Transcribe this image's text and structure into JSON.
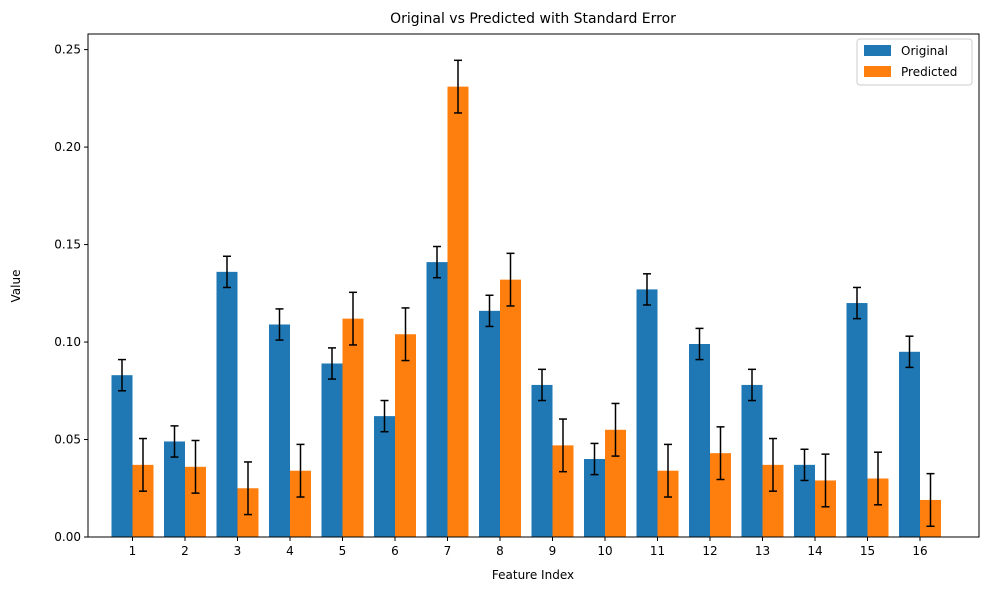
{
  "chart_data": {
    "type": "bar",
    "title": "Original vs Predicted with Standard Error",
    "xlabel": "Feature Index",
    "ylabel": "Value",
    "ylim": [
      0,
      0.258
    ],
    "yticks": [
      "0.00",
      "0.05",
      "0.10",
      "0.15",
      "0.20",
      "0.25"
    ],
    "ytick_values": [
      0,
      0.05,
      0.1,
      0.15,
      0.2,
      0.25
    ],
    "categories": [
      "1",
      "2",
      "3",
      "4",
      "5",
      "6",
      "7",
      "8",
      "9",
      "10",
      "11",
      "12",
      "13",
      "14",
      "15",
      "16"
    ],
    "series": [
      {
        "name": "Original",
        "color": "#1f77b4",
        "values": [
          0.083,
          0.049,
          0.136,
          0.109,
          0.089,
          0.062,
          0.141,
          0.116,
          0.078,
          0.04,
          0.127,
          0.099,
          0.078,
          0.037,
          0.12,
          0.095
        ],
        "errors": [
          0.008,
          0.008,
          0.008,
          0.008,
          0.008,
          0.008,
          0.008,
          0.008,
          0.008,
          0.008,
          0.008,
          0.008,
          0.008,
          0.008,
          0.008,
          0.008
        ]
      },
      {
        "name": "Predicted",
        "color": "#ff7f0e",
        "values": [
          0.037,
          0.036,
          0.025,
          0.034,
          0.112,
          0.104,
          0.231,
          0.132,
          0.047,
          0.055,
          0.034,
          0.043,
          0.037,
          0.029,
          0.03,
          0.019
        ],
        "errors": [
          0.0135,
          0.0135,
          0.0135,
          0.0135,
          0.0135,
          0.0135,
          0.0135,
          0.0135,
          0.0135,
          0.0135,
          0.0135,
          0.0135,
          0.0135,
          0.0135,
          0.0135,
          0.0135
        ]
      }
    ],
    "grid": false,
    "legend_position": "top-right"
  }
}
